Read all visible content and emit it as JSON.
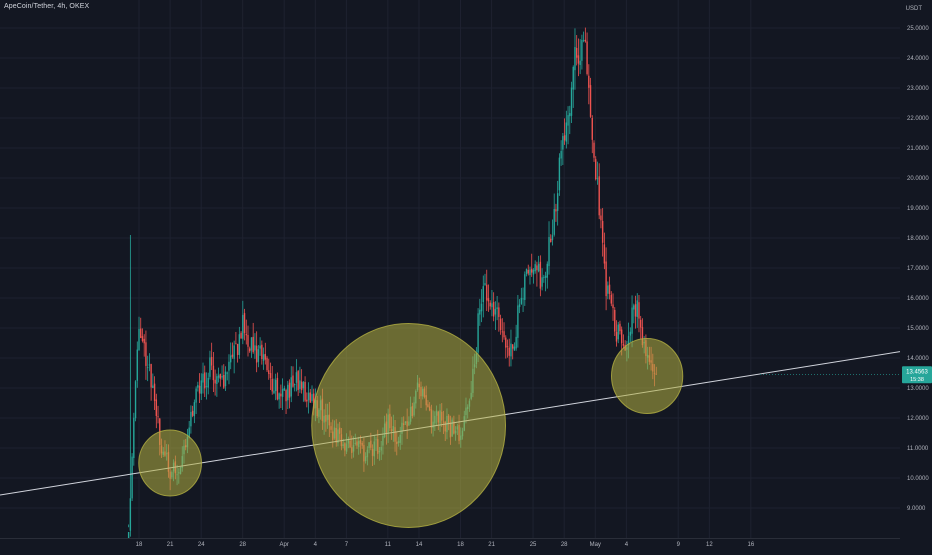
{
  "header": {
    "symbol_title": "ApeCoin/Tether, 4h, OKEX",
    "currency": "USDT"
  },
  "colors": {
    "background": "#131722",
    "grid": "#1e2230",
    "up": "#26a69a",
    "down": "#ef5350",
    "trendline": "#d1d4dc",
    "highlight_circle": "#b5b142",
    "last_price_badge": "#26a69a",
    "axis_text": "#b2b5be"
  },
  "chart_data": {
    "type": "candlestick",
    "instrument": "ApeCoin/Tether",
    "timeframe": "4h",
    "exchange": "OKEX",
    "x_tick_labels": [
      "18",
      "21",
      "24",
      "28",
      "Apr",
      "4",
      "7",
      "11",
      "14",
      "18",
      "21",
      "25",
      "28",
      "May",
      "4",
      "9",
      "12",
      "16"
    ],
    "y_tick_labels": [
      "9.0000",
      "10.0000",
      "11.0000",
      "12.0000",
      "13.0000",
      "14.0000",
      "15.0000",
      "16.0000",
      "17.0000",
      "18.0000",
      "19.0000",
      "20.0000",
      "21.0000",
      "22.0000",
      "23.0000",
      "24.0000",
      "25.0000"
    ],
    "ylim": [
      8.4,
      26.0
    ],
    "last_price": {
      "value": "13.4563",
      "countdown": "15:38"
    },
    "price_path": [
      [
        "Mar 17",
        8.5
      ],
      [
        "Mar 18",
        15.2
      ],
      [
        "Mar 19",
        13.6
      ],
      [
        "Mar 20",
        11.3
      ],
      [
        "Mar 21",
        10.1
      ],
      [
        "Mar 22",
        10.4
      ],
      [
        "Mar 23",
        12.1
      ],
      [
        "Mar 24",
        13.2
      ],
      [
        "Mar 25",
        13.7
      ],
      [
        "Mar 26",
        13.1
      ],
      [
        "Mar 27",
        13.9
      ],
      [
        "Mar 28",
        15.1
      ],
      [
        "Mar 29",
        14.3
      ],
      [
        "Mar 30",
        13.9
      ],
      [
        "Mar 31",
        13.1
      ],
      [
        "Apr 1",
        12.8
      ],
      [
        "Apr 2",
        13.3
      ],
      [
        "Apr 3",
        12.9
      ],
      [
        "Apr 4",
        12.5
      ],
      [
        "Apr 5",
        12.1
      ],
      [
        "Apr 6",
        11.4
      ],
      [
        "Apr 7",
        11.1
      ],
      [
        "Apr 8",
        11.0
      ],
      [
        "Apr 9",
        10.8
      ],
      [
        "Apr 10",
        11.1
      ],
      [
        "Apr 11",
        11.8
      ],
      [
        "Apr 12",
        11.3
      ],
      [
        "Apr 13",
        12.0
      ],
      [
        "Apr 14",
        13.1
      ],
      [
        "Apr 15",
        12.0
      ],
      [
        "Apr 16",
        12.1
      ],
      [
        "Apr 17",
        11.7
      ],
      [
        "Apr 18",
        11.5
      ],
      [
        "Apr 19",
        12.6
      ],
      [
        "Apr 20",
        16.2
      ],
      [
        "Apr 21",
        15.8
      ],
      [
        "Apr 22",
        14.8
      ],
      [
        "Apr 23",
        14.3
      ],
      [
        "Apr 24",
        16.3
      ],
      [
        "Apr 25",
        16.9
      ],
      [
        "Apr 26",
        16.6
      ],
      [
        "Apr 27",
        18.8
      ],
      [
        "Apr 28",
        21.5
      ],
      [
        "Apr 29",
        23.8
      ],
      [
        "Apr 30",
        24.6
      ],
      [
        "May 1",
        20.3
      ],
      [
        "May 2",
        16.5
      ],
      [
        "May 3",
        14.8
      ],
      [
        "May 4",
        14.6
      ],
      [
        "May 5",
        15.8
      ],
      [
        "May 6",
        14.0
      ],
      [
        "May 7",
        13.4
      ]
    ],
    "annotations": {
      "trendline": {
        "from": [
          "Mar 14",
          9.95
        ],
        "to": [
          "May 22",
          13.75
        ]
      },
      "highlight_circles": [
        {
          "center": [
            "Mar 21",
            10.5
          ],
          "radius": 1.1
        },
        {
          "center": [
            "Apr 13",
            11.75
          ],
          "radius": 3.4
        },
        {
          "center": [
            "May 6",
            13.4
          ],
          "radius": 1.25
        }
      ]
    }
  }
}
